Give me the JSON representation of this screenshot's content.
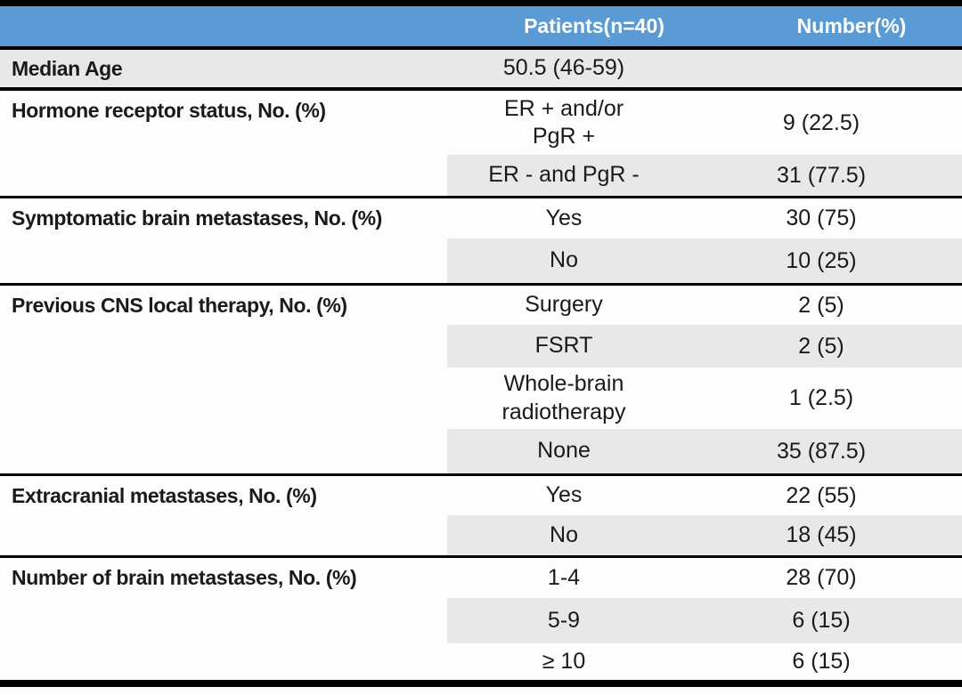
{
  "table": {
    "colors": {
      "header_bg": "#5B9BD5",
      "header_text": "#FFFFFF",
      "row_shade": "#E9E8E8",
      "rule": "#000000",
      "text": "#1A1A1A"
    },
    "header": {
      "patients": "Patients(n=40)",
      "number": "Number(%)"
    },
    "groups": [
      {
        "label": "Median Age",
        "rows": [
          {
            "category": "50.5 (46-59)",
            "value": ""
          }
        ]
      },
      {
        "label": "Hormone receptor status, No. (%)",
        "rows": [
          {
            "category": "ER + and/or\nPgR +",
            "value": "9 (22.5)"
          },
          {
            "category": "ER - and PgR -",
            "value": "31 (77.5)"
          }
        ]
      },
      {
        "label": "Symptomatic brain metastases, No. (%)",
        "rows": [
          {
            "category": "Yes",
            "value": "30 (75)"
          },
          {
            "category": "No",
            "value": "10 (25)"
          }
        ]
      },
      {
        "label": "Previous CNS local therapy, No. (%)",
        "rows": [
          {
            "category": "Surgery",
            "value": "2 (5)"
          },
          {
            "category": "FSRT",
            "value": "2 (5)"
          },
          {
            "category": "Whole-brain\nradiotherapy",
            "value": "1 (2.5)"
          },
          {
            "category": "None",
            "value": "35 (87.5)"
          }
        ]
      },
      {
        "label": "Extracranial metastases, No. (%)",
        "rows": [
          {
            "category": "Yes",
            "value": "22 (55)"
          },
          {
            "category": "No",
            "value": "18 (45)"
          }
        ]
      },
      {
        "label": "Number of brain metastases, No. (%)",
        "rows": [
          {
            "category": "1-4",
            "value": "28 (70)"
          },
          {
            "category": "5-9",
            "value": "6 (15)"
          },
          {
            "category": "≥ 10",
            "value": "6 (15)"
          }
        ]
      }
    ]
  }
}
